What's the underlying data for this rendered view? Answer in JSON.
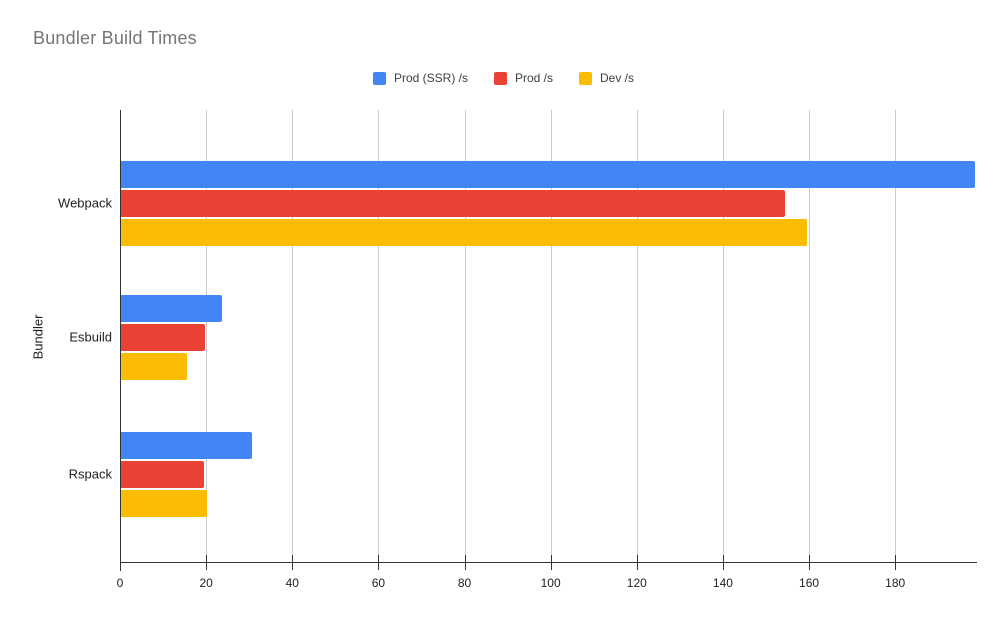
{
  "title": "Bundler Build Times",
  "chart_data": {
    "type": "bar",
    "orientation": "horizontal",
    "title": "Bundler Build Times",
    "xlabel": "",
    "ylabel": "Bundler",
    "categories": [
      "Webpack",
      "Esbuild",
      "Rspack"
    ],
    "series": [
      {
        "name": "Prod (SSR) /s",
        "color": "#4285F4",
        "values": [
          198.3,
          23.5,
          30.5
        ]
      },
      {
        "name": "Prod /s",
        "color": "#EA4335",
        "values": [
          154.3,
          19.5,
          19.2
        ]
      },
      {
        "name": "Dev /s",
        "color": "#FBBC04",
        "values": [
          159.3,
          15.3,
          19.9
        ]
      }
    ],
    "xlim": [
      0,
      199
    ],
    "xticks": [
      0,
      20,
      40,
      60,
      80,
      100,
      120,
      140,
      160,
      180
    ],
    "grid": "vertical-only",
    "legend_position": "top-center",
    "background": "#FFFFFF"
  },
  "styles": {
    "title_color": "#757575",
    "axis_text_color": "#222222",
    "gridline_color": "#CCCCCC",
    "axis_line_color": "#333333"
  }
}
